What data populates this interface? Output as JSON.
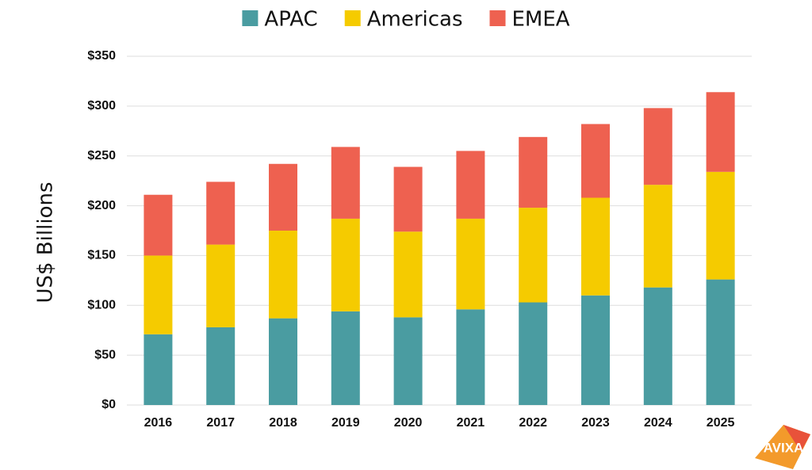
{
  "chart_data": {
    "type": "stacked_bar",
    "y_label": "US$ Billions",
    "categories": [
      "2016",
      "2017",
      "2018",
      "2019",
      "2020",
      "2021",
      "2022",
      "2023",
      "2024",
      "2025"
    ],
    "series": [
      {
        "name": "APAC",
        "color": "#4a9ca1",
        "values": [
          71,
          78,
          87,
          94,
          88,
          96,
          103,
          110,
          118,
          126
        ]
      },
      {
        "name": "Americas",
        "color": "#f5cb00",
        "values": [
          79,
          83,
          88,
          93,
          86,
          91,
          95,
          98,
          103,
          108
        ]
      },
      {
        "name": "EMEA",
        "color": "#ee6150",
        "values": [
          61,
          63,
          67,
          72,
          65,
          68,
          71,
          74,
          77,
          80
        ]
      }
    ],
    "ylim": [
      0,
      350
    ],
    "yticks": [
      {
        "value": 0,
        "label": "$0"
      },
      {
        "value": 50,
        "label": "$50"
      },
      {
        "value": 100,
        "label": "$100"
      },
      {
        "value": 150,
        "label": "$150"
      },
      {
        "value": 200,
        "label": "$200"
      },
      {
        "value": 250,
        "label": "$250"
      },
      {
        "value": 300,
        "label": "$300"
      },
      {
        "value": 350,
        "label": "$350"
      }
    ],
    "grid": true,
    "legend": "top"
  },
  "logo": "AVIXA"
}
